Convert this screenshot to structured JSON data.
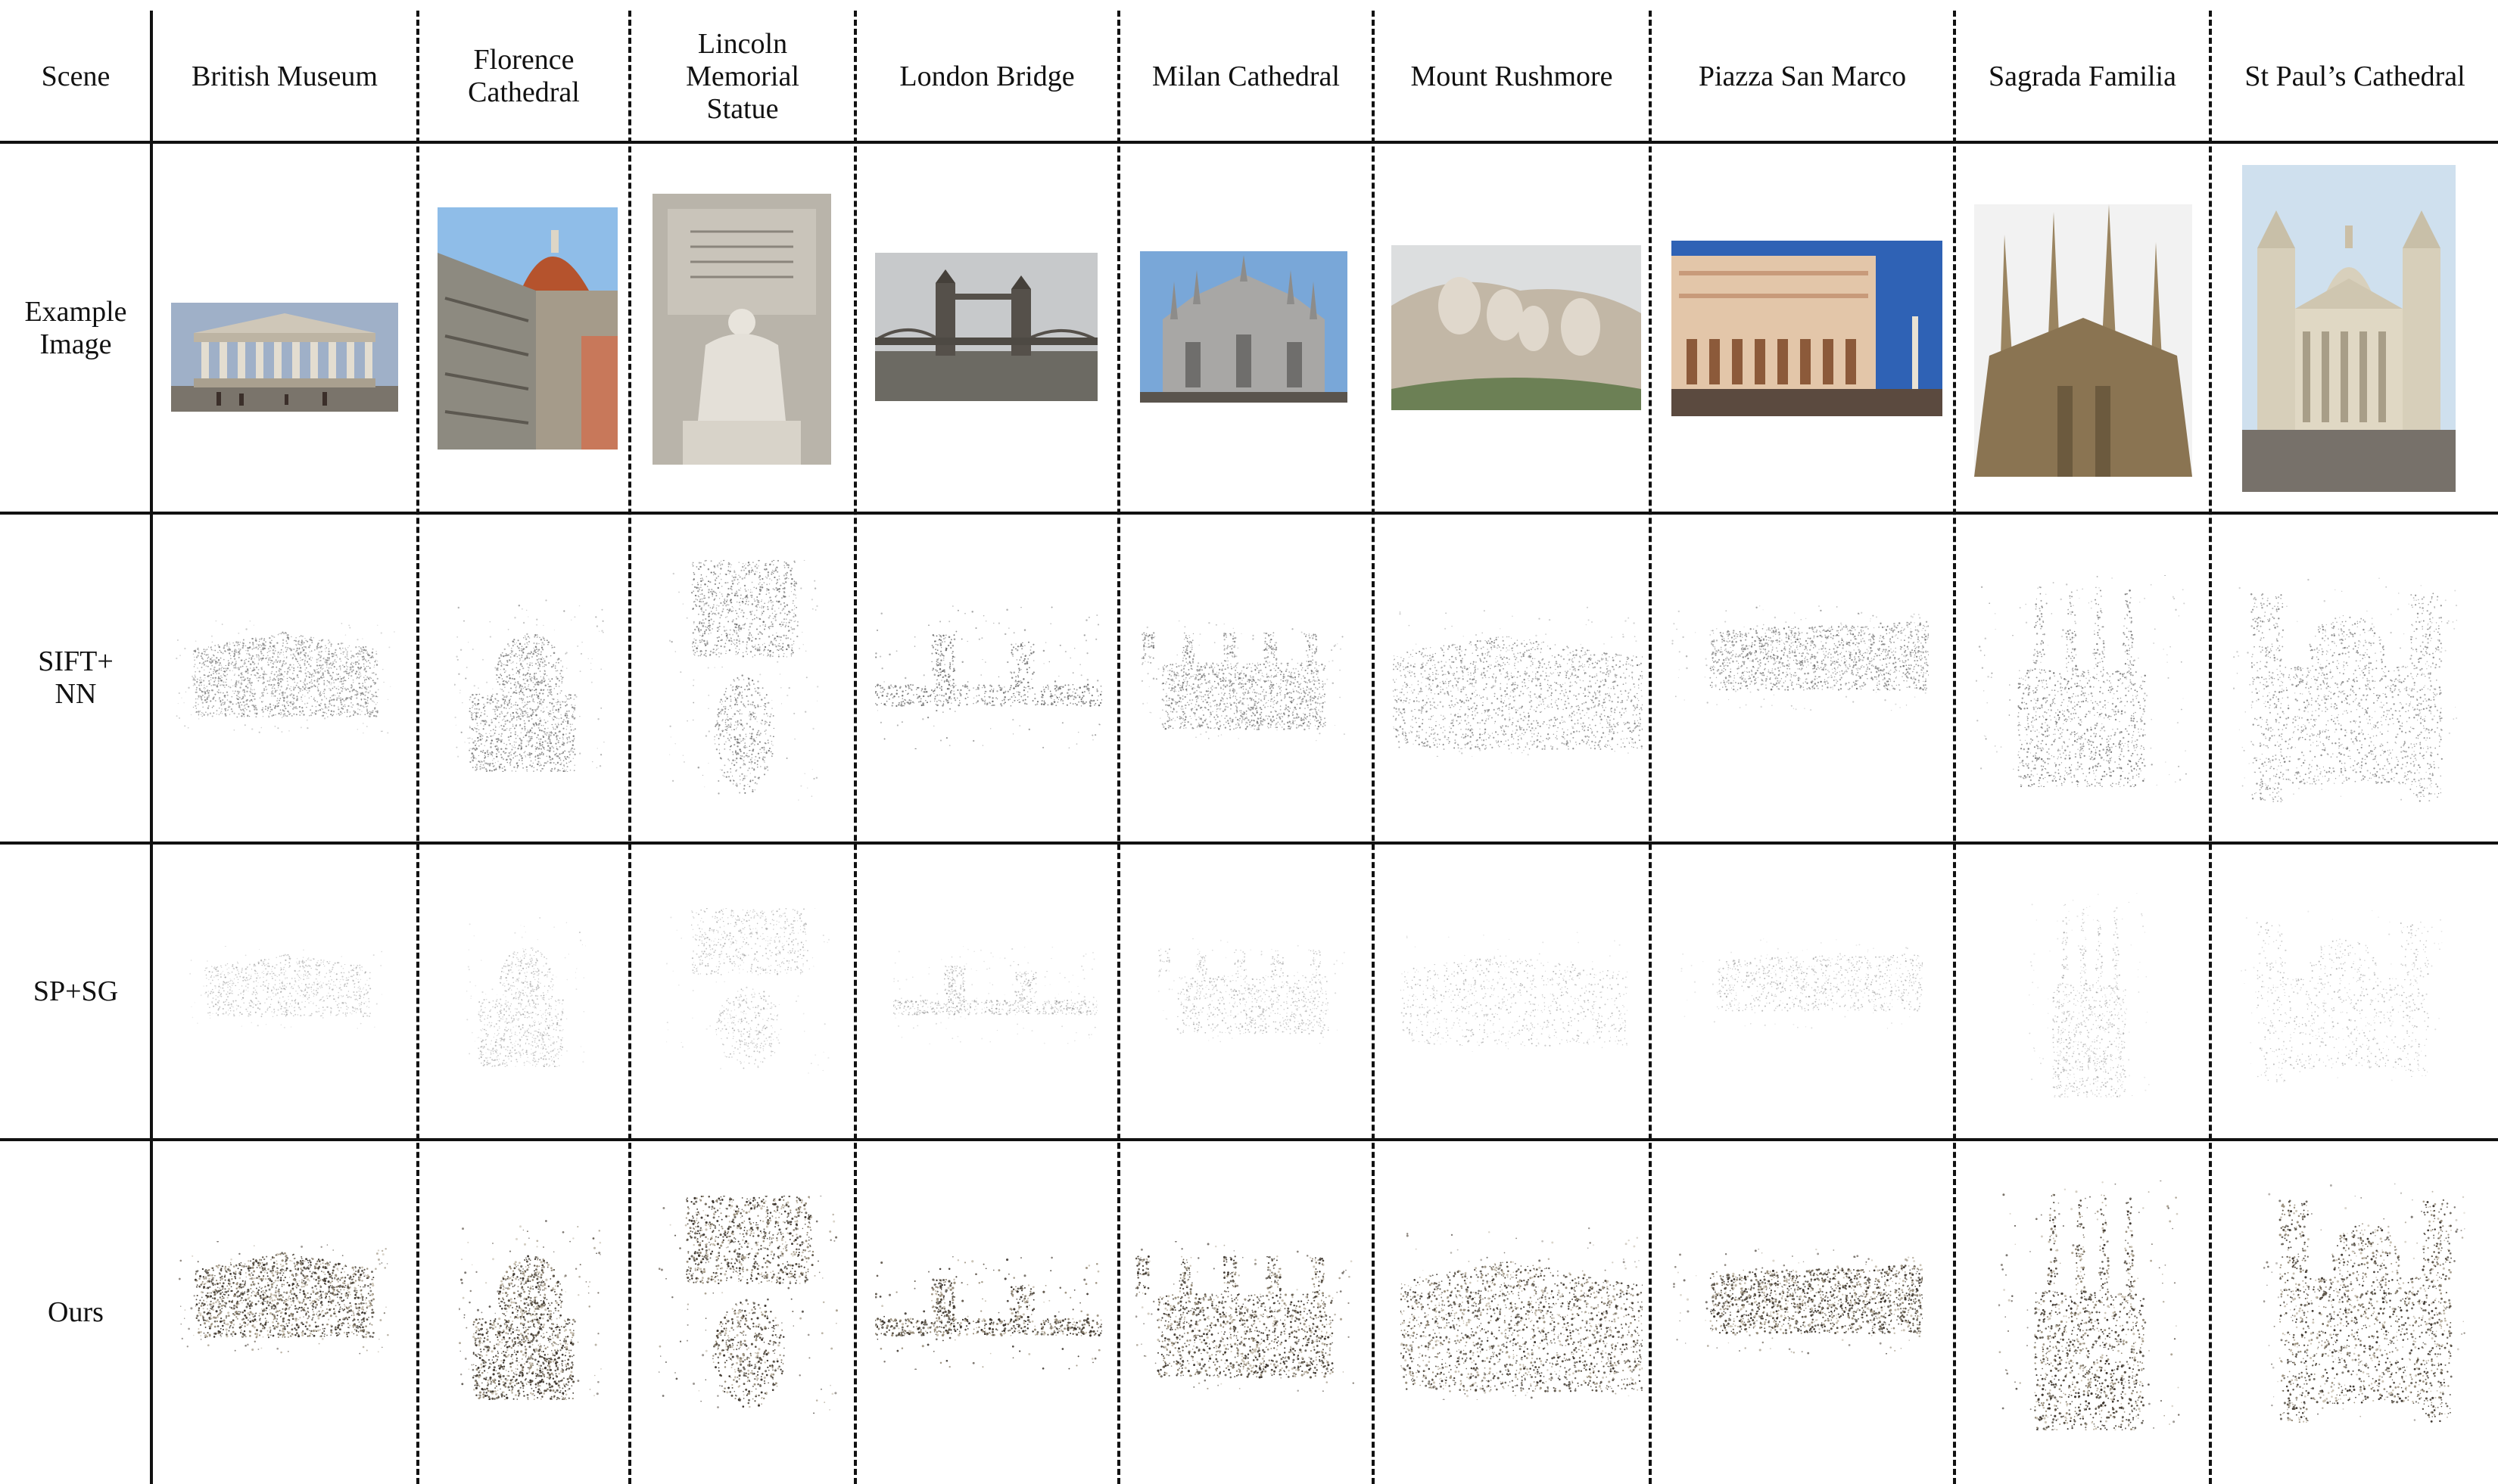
{
  "header": {
    "scene_label": "Scene",
    "columns": [
      "British Museum",
      "Florence\nCathedral",
      "Lincoln\nMemorial\nStatue",
      "London Bridge",
      "Milan Cathedral",
      "Mount Rushmore",
      "Piazza San Marco",
      "Sagrada Familia",
      "St Paul’s Cathedral"
    ]
  },
  "rows": [
    {
      "label": "Example\nImage"
    },
    {
      "label": "SIFT+\nNN"
    },
    {
      "label": "SP+SG"
    },
    {
      "label": "Ours"
    }
  ],
  "colors": {
    "line": "#111111",
    "sky": "#9fc3e6",
    "stone": "#c9c1b2",
    "ground": "#6f6a62",
    "dome_red": "#b5532d",
    "sparse_points": "#8a8a8a",
    "dense_points": "#5a5246"
  }
}
